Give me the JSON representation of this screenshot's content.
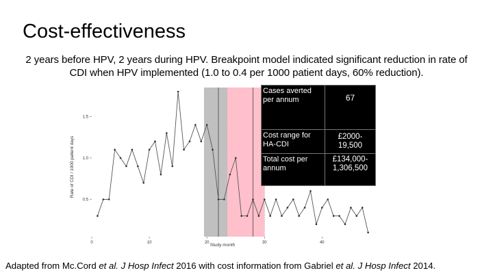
{
  "slide": {
    "title": "Cost-effectiveness",
    "subtitle": "2 years before HPV, 2 years during HPV. Breakpoint model indicated significant reduction in rate of CDI when HPV implemented (1.0 to 0.4 per 1000 patient days, 60% reduction).",
    "caption": {
      "prefix": "Adapted from Mc.Cord ",
      "etal1": "et al.",
      "journal1": " J Hosp Infect",
      "mid": " 2016 with cost information from Gabriel ",
      "etal2": "et al.",
      "journal2": " J Hosp Infect",
      "suffix": " 2014."
    }
  },
  "info_table": {
    "rows": [
      {
        "label": "Cases averted per annum",
        "value": "67"
      },
      {
        "label": "Cost range for HA-CDI",
        "value": "£2000-19,500"
      },
      {
        "label": "Total cost per annum",
        "value": "£134,000-1,306,500"
      }
    ]
  },
  "colors": {
    "shade_grey": "#c0c0c0",
    "shade_pink": "#ffc0cb",
    "line": "#555555",
    "table_bg": "#000000",
    "table_text": "#ffffff"
  },
  "chart_data": {
    "type": "line",
    "xlabel": "Study month",
    "ylabel": "Rate of CDI / 1000 patient days",
    "xlim": [
      0,
      49
    ],
    "ylim": [
      0.05,
      1.85
    ],
    "xticks": [
      0,
      10,
      20,
      30,
      40
    ],
    "yticks": [
      0.5,
      1.0,
      1.5
    ],
    "xtick_labels": [
      "0",
      "10",
      "20",
      "30",
      "40"
    ],
    "ytick_labels": [
      "0.5",
      "1.0",
      "1.5"
    ],
    "shaded_regions": [
      {
        "from": 19.5,
        "to": 23.5,
        "color": "#c0c0c0"
      },
      {
        "from": 23.5,
        "to": 30.0,
        "color": "#ffc0cb"
      }
    ],
    "vertical_lines": [
      22,
      28
    ],
    "x": [
      1,
      2,
      3,
      4,
      5,
      6,
      7,
      8,
      9,
      10,
      11,
      12,
      13,
      14,
      15,
      16,
      17,
      18,
      19,
      20,
      21,
      22,
      23,
      24,
      25,
      26,
      27,
      28,
      29,
      30,
      31,
      32,
      33,
      34,
      35,
      36,
      37,
      38,
      39,
      40,
      41,
      42,
      43,
      44,
      45,
      46,
      47,
      48
    ],
    "values": [
      0.3,
      0.5,
      0.5,
      1.1,
      1.0,
      0.9,
      1.1,
      0.9,
      0.7,
      1.1,
      1.2,
      0.8,
      1.3,
      0.9,
      1.8,
      1.1,
      1.2,
      1.4,
      1.2,
      1.4,
      1.1,
      0.5,
      0.5,
      0.8,
      1.0,
      0.3,
      0.3,
      0.5,
      0.3,
      0.5,
      0.3,
      0.5,
      0.3,
      0.4,
      0.5,
      0.3,
      0.4,
      0.6,
      0.2,
      0.4,
      0.5,
      0.3,
      0.3,
      0.2,
      0.4,
      0.3,
      0.4,
      0.1
    ]
  }
}
